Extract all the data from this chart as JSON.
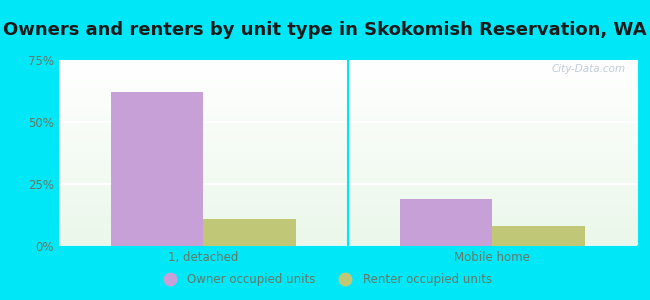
{
  "title": "Owners and renters by unit type in Skokomish Reservation, WA",
  "categories": [
    "1, detached",
    "Mobile home"
  ],
  "owner_values": [
    62,
    19
  ],
  "renter_values": [
    11,
    8
  ],
  "owner_color": "#c8a0d8",
  "renter_color": "#c0c878",
  "ylim": [
    0,
    75
  ],
  "yticks": [
    0,
    25,
    50,
    75
  ],
  "ytick_labels": [
    "0%",
    "25%",
    "50%",
    "75%"
  ],
  "background_outer": "#00e8f8",
  "bar_width": 0.32,
  "legend_labels": [
    "Owner occupied units",
    "Renter occupied units"
  ],
  "watermark": "City-Data.com",
  "title_fontsize": 13,
  "tick_color": "#667766"
}
